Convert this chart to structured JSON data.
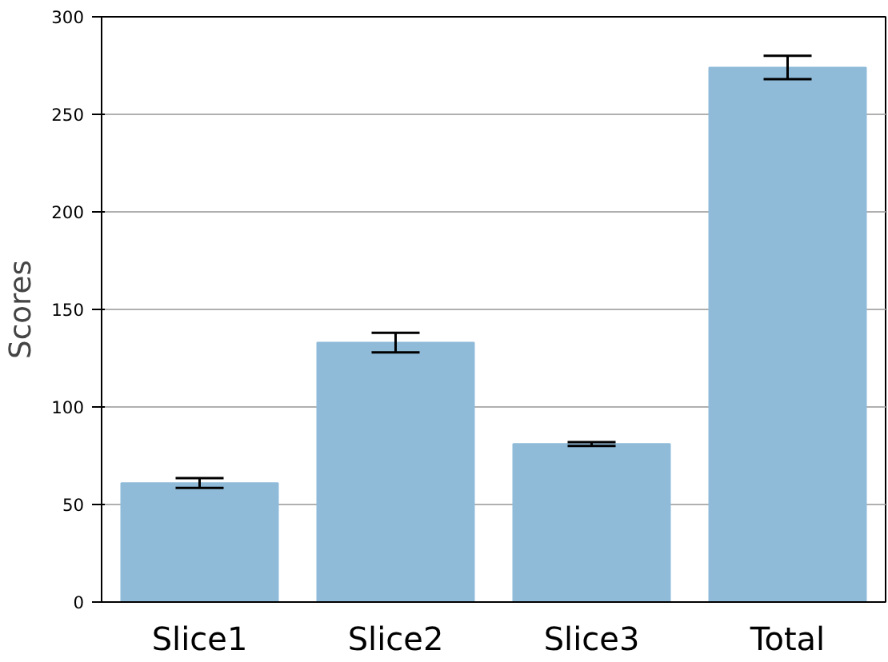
{
  "chart_data": {
    "type": "bar",
    "ylabel": "Scores",
    "categories": [
      "Slice1",
      "Slice2",
      "Slice3",
      "Total"
    ],
    "values": [
      61,
      133,
      81,
      274
    ],
    "errors": [
      2.5,
      5,
      1,
      6
    ],
    "color": "#8fbbd9",
    "ylim": [
      0,
      300
    ],
    "yticks": [
      0,
      50,
      100,
      150,
      200,
      250,
      300
    ],
    "grid": "y"
  }
}
